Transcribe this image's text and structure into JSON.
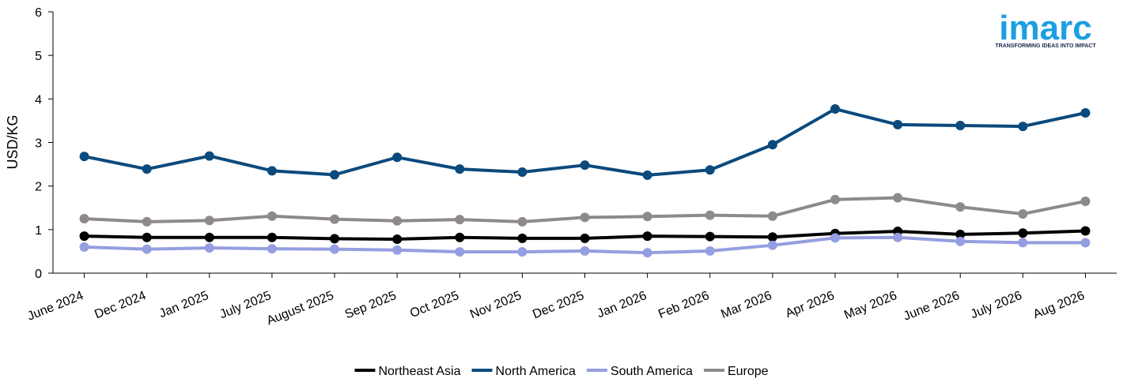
{
  "chart_data": {
    "type": "line",
    "y_label": "USD/KG",
    "categories": [
      "June 2024",
      "Dec 2024",
      "Jan 2025",
      "July 2025",
      "August 2025",
      "Sep 2025",
      "Oct 2025",
      "Nov 2025",
      "Dec 2025",
      "Jan 2026",
      "Feb 2026",
      "Mar 2026",
      "Apr 2026",
      "May 2026",
      "June 2026",
      "July 2026",
      "Aug 2026"
    ],
    "series": [
      {
        "name": "Northeast Asia",
        "color": "#000000",
        "values": [
          0.85,
          0.82,
          0.82,
          0.82,
          0.79,
          0.78,
          0.82,
          0.8,
          0.8,
          0.85,
          0.84,
          0.83,
          0.91,
          0.96,
          0.89,
          0.92,
          0.97
        ]
      },
      {
        "name": "North America",
        "color": "#0b4a7d",
        "values": [
          2.68,
          2.39,
          2.69,
          2.35,
          2.26,
          2.66,
          2.39,
          2.32,
          2.48,
          2.25,
          2.37,
          2.95,
          3.77,
          3.41,
          3.39,
          3.37,
          3.68
        ]
      },
      {
        "name": "South America",
        "color": "#959ee0",
        "values": [
          0.6,
          0.55,
          0.58,
          0.56,
          0.55,
          0.53,
          0.49,
          0.49,
          0.51,
          0.47,
          0.51,
          0.64,
          0.81,
          0.82,
          0.73,
          0.7,
          0.7
        ]
      },
      {
        "name": "Europe",
        "color": "#8e898b",
        "values": [
          1.25,
          1.18,
          1.21,
          1.31,
          1.24,
          1.2,
          1.23,
          1.18,
          1.28,
          1.3,
          1.33,
          1.31,
          1.69,
          1.73,
          1.52,
          1.36,
          1.65
        ]
      }
    ],
    "ylim": [
      0,
      6
    ],
    "yticks": [
      0,
      1,
      2,
      3,
      4,
      5,
      6
    ],
    "grid": false,
    "legend": "bottom"
  },
  "logo": {
    "name": "imarc",
    "tagline": "TRANSFORMING IDEAS INTO IMPACT",
    "color": "#1c9fe2"
  }
}
